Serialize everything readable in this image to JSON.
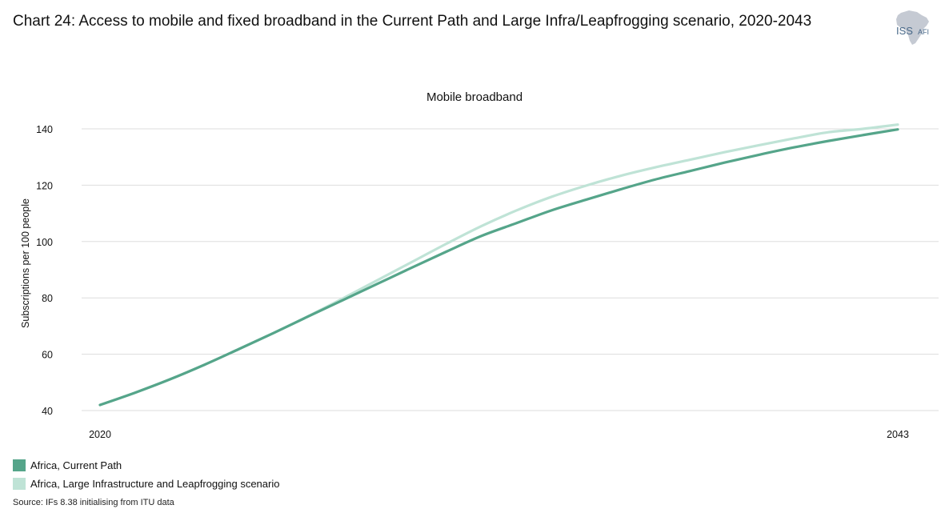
{
  "header": {
    "title": "Chart 24: Access to mobile and fixed broadband in the Current Path and Large Infra/Leapfrogging scenario, 2020-2043"
  },
  "logo": {
    "text_main": "ISS",
    "text_sub": "AFI",
    "icon": "africa-map-icon"
  },
  "colors": {
    "current_path": "#55a58a",
    "scenario": "#bfe3d6",
    "grid": "#dddddd",
    "logo_map": "#c5cad3",
    "logo_text": "#4a6a8a"
  },
  "chart_data": {
    "type": "line",
    "title": "Mobile broadband",
    "xlabel": "",
    "ylabel": "Subscriptions per 100 people",
    "x": [
      2020,
      2021,
      2022,
      2023,
      2024,
      2025,
      2026,
      2027,
      2028,
      2029,
      2030,
      2031,
      2032,
      2033,
      2034,
      2035,
      2036,
      2037,
      2038,
      2039,
      2040,
      2041,
      2042,
      2043
    ],
    "x_ticks": [
      "2020",
      "2043"
    ],
    "xlim": [
      2020,
      2043
    ],
    "y_ticks": [
      40,
      60,
      80,
      100,
      120,
      140
    ],
    "ylim": [
      38,
      142
    ],
    "grid": true,
    "legend_placement": "bottom-left",
    "series": [
      {
        "name": "Africa, Current Path",
        "values": [
          42,
          46.3,
          51,
          56.2,
          61.8,
          67.5,
          73.4,
          79.2,
          85,
          90.8,
          96.5,
          102,
          106.5,
          111,
          114.8,
          118.5,
          122,
          125,
          128,
          130.8,
          133.4,
          135.7,
          137.8,
          139.8
        ]
      },
      {
        "name": "Africa, Large Infrastructure and Leapfrogging scenario",
        "values": [
          42,
          46.3,
          51,
          56.2,
          61.8,
          67.5,
          73.5,
          79.8,
          86.3,
          92.8,
          99.3,
          105.5,
          111,
          115.8,
          119.8,
          123.3,
          126.3,
          129,
          131.7,
          134.2,
          136.6,
          138.8,
          140,
          141.5
        ]
      }
    ]
  },
  "legend": {
    "items": [
      {
        "label": "Africa, Current Path"
      },
      {
        "label": "Africa, Large Infrastructure and Leapfrogging scenario"
      }
    ]
  },
  "footer": {
    "source": "Source: IFs 8.38 initialising from ITU data"
  }
}
